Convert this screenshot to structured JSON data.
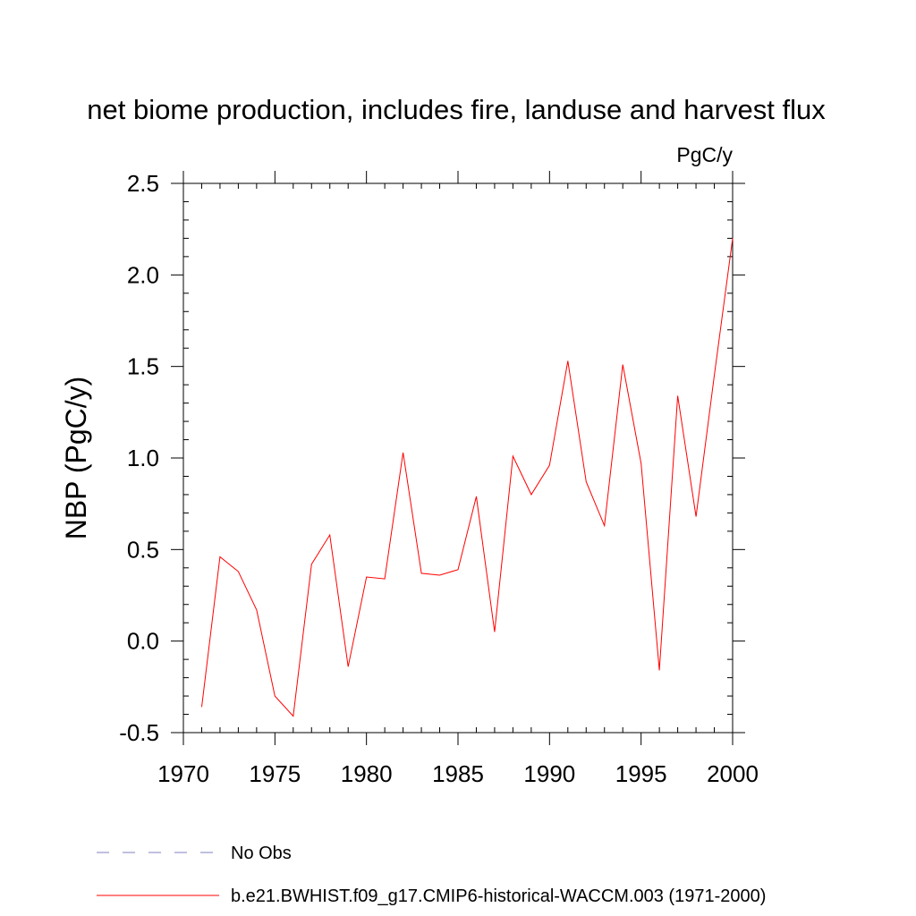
{
  "chart_data": {
    "type": "line",
    "title": "net biome production, includes fire, landuse and harvest flux",
    "units_label": "PgC/y",
    "ylabel": "NBP  (PgC/y)",
    "xlabel": "",
    "xlim": [
      1970,
      2000
    ],
    "ylim": [
      -0.5,
      2.5
    ],
    "x_ticks": [
      1970,
      1975,
      1980,
      1985,
      1990,
      1995,
      2000
    ],
    "x_tick_labels": [
      "1970",
      "1975",
      "1980",
      "1985",
      "1990",
      "1995",
      "2000"
    ],
    "y_ticks": [
      -0.5,
      0.0,
      0.5,
      1.0,
      1.5,
      2.0,
      2.5
    ],
    "y_tick_labels": [
      "-0.5",
      "0.0",
      "0.5",
      "1.0",
      "1.5",
      "2.0",
      "2.5"
    ],
    "grid": false,
    "legend_position": "bottom",
    "series": [
      {
        "name": "b.e21.BWHIST.f09_g17.CMIP6-historical-WACCM.003 (1971-2000)",
        "color": "#ff0000",
        "style": "solid",
        "x": [
          1971,
          1972,
          1973,
          1974,
          1975,
          1976,
          1977,
          1978,
          1979,
          1980,
          1981,
          1982,
          1983,
          1984,
          1985,
          1986,
          1987,
          1988,
          1989,
          1990,
          1991,
          1992,
          1993,
          1994,
          1995,
          1996,
          1997,
          1998,
          1999,
          2000
        ],
        "values": [
          -0.36,
          0.46,
          0.38,
          0.17,
          -0.3,
          -0.41,
          0.42,
          0.58,
          -0.14,
          0.35,
          0.34,
          1.03,
          0.37,
          0.36,
          0.39,
          0.79,
          0.05,
          1.01,
          0.8,
          0.96,
          1.53,
          0.87,
          0.63,
          1.51,
          0.97,
          -0.16,
          1.34,
          0.68,
          1.45,
          2.2
        ]
      }
    ],
    "legend": [
      {
        "label": "No Obs",
        "color": "#8080c0",
        "style": "dashed"
      },
      {
        "label": "b.e21.BWHIST.f09_g17.CMIP6-historical-WACCM.003 (1971-2000)",
        "color": "#ff0000",
        "style": "solid"
      }
    ]
  }
}
